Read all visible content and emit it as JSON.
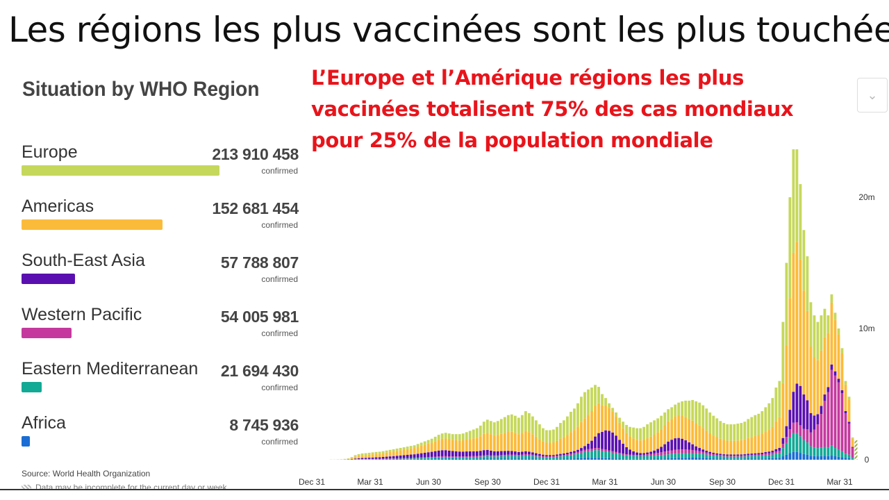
{
  "slide_title": "Les régions les plus vaccinées sont les plus touchées",
  "panel_title": "Situation by WHO Region",
  "callout": "L’Europe et l’Amérique régions les plus vaccinées totalisent 75% des cas mondiaux pour 25% de la population mondiale",
  "dropdown_icon": "chevron-down-icon",
  "regions": [
    {
      "name": "Europe",
      "value": "213 910 458",
      "unit": "confirmed",
      "confirmed": 213910458,
      "color": "#c6d85b"
    },
    {
      "name": "Americas",
      "value": "152 681 454",
      "unit": "confirmed",
      "confirmed": 152681454,
      "color": "#fbbb3a"
    },
    {
      "name": "South-East Asia",
      "value": "57 788 807",
      "unit": "confirmed",
      "confirmed": 57788807,
      "color": "#5a10b0"
    },
    {
      "name": "Western Pacific",
      "value": "54 005 981",
      "unit": "confirmed",
      "confirmed": 54005981,
      "color": "#c5399e"
    },
    {
      "name": "Eastern Mediterranean",
      "value": "21 694 430",
      "unit": "confirmed",
      "confirmed": 21694430,
      "color": "#12a995"
    },
    {
      "name": "Africa",
      "value": "8 745 936",
      "unit": "confirmed",
      "confirmed": 8745936,
      "color": "#1a6dd4"
    }
  ],
  "source": "Source: World Health Organization",
  "note": "Data may be incomplete for the current day or week",
  "chart_data": {
    "type": "bar",
    "stacked": true,
    "x_tick_labels": [
      "Dec 31",
      "Mar 31",
      "Jun 30",
      "Sep 30",
      "Dec 31",
      "Mar 31",
      "Jun 30",
      "Sep 30",
      "Dec 31",
      "Mar 31"
    ],
    "y_tick_labels": [
      "0",
      "10m",
      "20m"
    ],
    "ylim": [
      0,
      20000000
    ],
    "y_axis_position": "right",
    "grid": false,
    "stack_order": [
      "Africa",
      "Eastern Mediterranean",
      "Western Pacific",
      "South-East Asia",
      "Americas",
      "Europe"
    ],
    "series": [
      {
        "name": "Europe",
        "color": "#c6d85b"
      },
      {
        "name": "Americas",
        "color": "#fbbb3a"
      },
      {
        "name": "South-East Asia",
        "color": "#5a10b0"
      },
      {
        "name": "Western Pacific",
        "color": "#c5399e"
      },
      {
        "name": "Eastern Mediterranean",
        "color": "#12a995"
      },
      {
        "name": "Africa",
        "color": "#1a6dd4"
      }
    ],
    "weekly_totals": [
      10000,
      10000,
      20000,
      30000,
      60000,
      100000,
      200000,
      350000,
      420000,
      480000,
      500000,
      530000,
      560000,
      590000,
      610000,
      650000,
      700000,
      750000,
      800000,
      850000,
      900000,
      950000,
      1000000,
      1050000,
      1100000,
      1200000,
      1300000,
      1400000,
      1500000,
      1600000,
      1750000,
      1900000,
      2000000,
      2050000,
      2000000,
      1950000,
      1950000,
      1950000,
      2000000,
      2100000,
      2200000,
      2300000,
      2400000,
      2600000,
      2900000,
      3050000,
      2950000,
      2850000,
      2950000,
      3100000,
      3250000,
      3400000,
      3450000,
      3350000,
      3200000,
      3400000,
      3700000,
      3550000,
      3300000,
      3000000,
      2700000,
      2400000,
      2250000,
      2250000,
      2300000,
      2500000,
      2800000,
      3000000,
      3300000,
      3650000,
      3900000,
      4300000,
      4800000,
      5150000,
      5350000,
      5500000,
      5700000,
      5550000,
      5000000,
      4700000,
      4300000,
      3950000,
      3600000,
      3200000,
      2900000,
      2650000,
      2500000,
      2450000,
      2400000,
      2400000,
      2500000,
      2700000,
      2850000,
      3000000,
      3150000,
      3350000,
      3600000,
      3850000,
      4000000,
      4200000,
      4350000,
      4450000,
      4500000,
      4500000,
      4550000,
      4450000,
      4350000,
      4150000,
      3900000,
      3600000,
      3350000,
      3150000,
      2950000,
      2800000,
      2700000,
      2700000,
      2700000,
      2750000,
      2800000,
      2900000,
      3100000,
      3250000,
      3400000,
      3500000,
      3700000,
      4000000,
      4300000,
      4700000,
      5500000,
      6000000,
      10500000,
      15000000,
      20000000,
      24000000,
      23800000,
      21000000,
      17500000,
      15500000,
      12000000,
      11000000,
      10500000,
      11000000,
      11500000,
      11000000,
      12600000,
      11200000,
      10000000,
      8500000,
      6000000,
      4800000,
      1700000
    ]
  }
}
